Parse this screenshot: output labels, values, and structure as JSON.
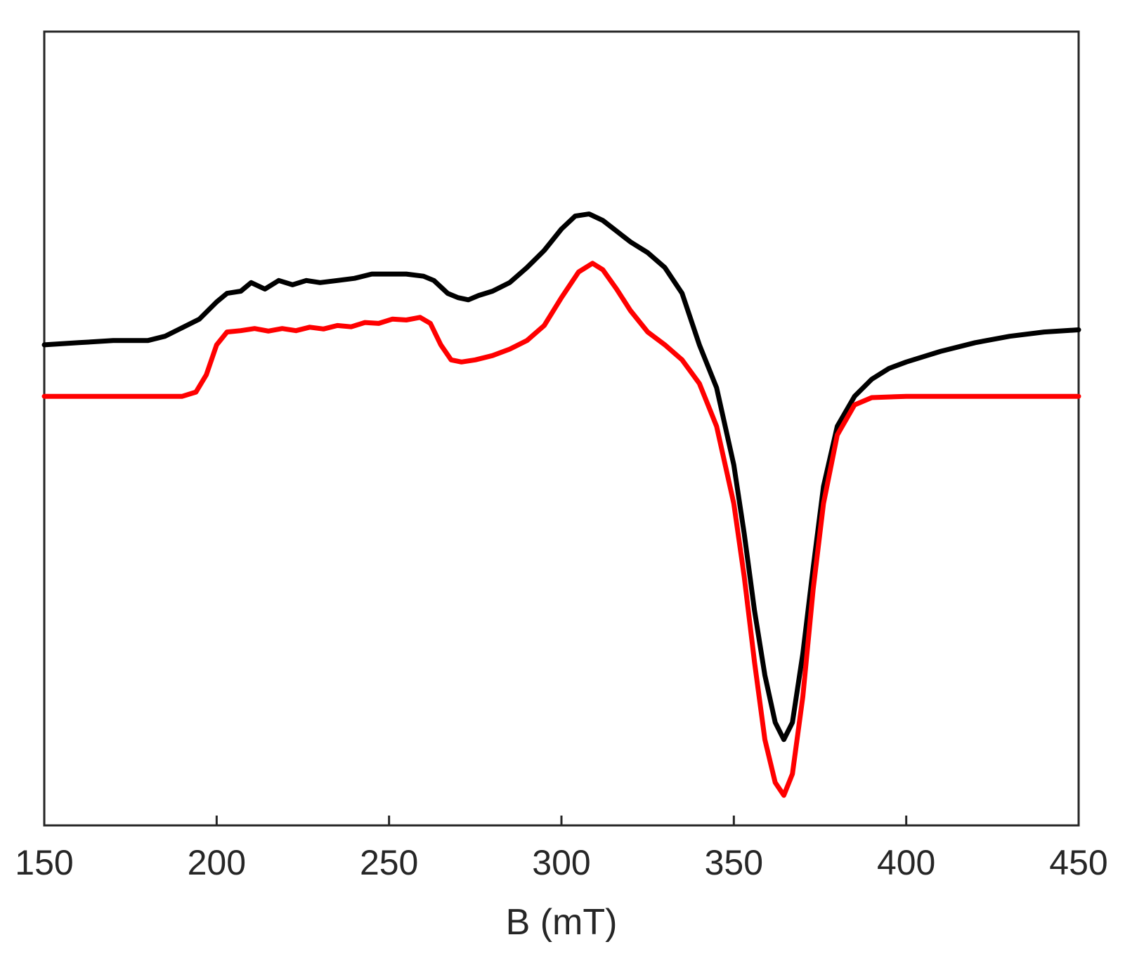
{
  "chart_data": {
    "type": "line",
    "title": "",
    "xlabel": "B (mT)",
    "ylabel": "",
    "xlim": [
      150,
      450
    ],
    "ylim": [
      -1.0,
      0.85
    ],
    "xticks": [
      "150",
      "200",
      "250",
      "300",
      "350",
      "400",
      "450"
    ],
    "grid": false,
    "legend": "none",
    "series": [
      {
        "color": "#000000",
        "points": [
          [
            150,
            0.12
          ],
          [
            160,
            0.125
          ],
          [
            170,
            0.13
          ],
          [
            180,
            0.13
          ],
          [
            185,
            0.14
          ],
          [
            190,
            0.16
          ],
          [
            195,
            0.18
          ],
          [
            200,
            0.22
          ],
          [
            203,
            0.24
          ],
          [
            207,
            0.245
          ],
          [
            210,
            0.265
          ],
          [
            214,
            0.25
          ],
          [
            218,
            0.27
          ],
          [
            222,
            0.26
          ],
          [
            226,
            0.27
          ],
          [
            230,
            0.265
          ],
          [
            235,
            0.27
          ],
          [
            240,
            0.275
          ],
          [
            245,
            0.285
          ],
          [
            250,
            0.285
          ],
          [
            255,
            0.285
          ],
          [
            260,
            0.28
          ],
          [
            263,
            0.27
          ],
          [
            267,
            0.24
          ],
          [
            270,
            0.23
          ],
          [
            273,
            0.225
          ],
          [
            276,
            0.235
          ],
          [
            280,
            0.245
          ],
          [
            285,
            0.265
          ],
          [
            290,
            0.3
          ],
          [
            295,
            0.34
          ],
          [
            300,
            0.39
          ],
          [
            304,
            0.42
          ],
          [
            308,
            0.425
          ],
          [
            312,
            0.41
          ],
          [
            316,
            0.385
          ],
          [
            320,
            0.36
          ],
          [
            325,
            0.335
          ],
          [
            330,
            0.3
          ],
          [
            335,
            0.24
          ],
          [
            340,
            0.12
          ],
          [
            345,
            0.02
          ],
          [
            350,
            -0.16
          ],
          [
            353,
            -0.32
          ],
          [
            356,
            -0.5
          ],
          [
            359,
            -0.65
          ],
          [
            362,
            -0.76
          ],
          [
            364.5,
            -0.8
          ],
          [
            367,
            -0.76
          ],
          [
            370,
            -0.6
          ],
          [
            373,
            -0.4
          ],
          [
            376,
            -0.21
          ],
          [
            380,
            -0.07
          ],
          [
            385,
            0.0
          ],
          [
            390,
            0.04
          ],
          [
            395,
            0.065
          ],
          [
            400,
            0.08
          ],
          [
            410,
            0.105
          ],
          [
            420,
            0.125
          ],
          [
            430,
            0.14
          ],
          [
            440,
            0.15
          ],
          [
            450,
            0.155
          ]
        ]
      },
      {
        "color": "#ff0000",
        "points": [
          [
            150,
            0.0
          ],
          [
            190,
            0.0
          ],
          [
            194,
            0.01
          ],
          [
            197,
            0.05
          ],
          [
            200,
            0.12
          ],
          [
            203,
            0.15
          ],
          [
            207,
            0.153
          ],
          [
            211,
            0.158
          ],
          [
            215,
            0.152
          ],
          [
            219,
            0.158
          ],
          [
            223,
            0.153
          ],
          [
            227,
            0.161
          ],
          [
            231,
            0.157
          ],
          [
            235,
            0.165
          ],
          [
            239,
            0.162
          ],
          [
            243,
            0.172
          ],
          [
            247,
            0.17
          ],
          [
            251,
            0.18
          ],
          [
            255,
            0.178
          ],
          [
            259,
            0.184
          ],
          [
            262,
            0.17
          ],
          [
            265,
            0.12
          ],
          [
            268,
            0.085
          ],
          [
            271,
            0.08
          ],
          [
            275,
            0.085
          ],
          [
            280,
            0.095
          ],
          [
            285,
            0.11
          ],
          [
            290,
            0.13
          ],
          [
            295,
            0.165
          ],
          [
            300,
            0.23
          ],
          [
            305,
            0.29
          ],
          [
            309,
            0.31
          ],
          [
            312,
            0.295
          ],
          [
            316,
            0.25
          ],
          [
            320,
            0.2
          ],
          [
            325,
            0.15
          ],
          [
            330,
            0.12
          ],
          [
            335,
            0.085
          ],
          [
            340,
            0.03
          ],
          [
            345,
            -0.07
          ],
          [
            350,
            -0.25
          ],
          [
            353,
            -0.42
          ],
          [
            356,
            -0.62
          ],
          [
            359,
            -0.8
          ],
          [
            362,
            -0.9
          ],
          [
            364.5,
            -0.93
          ],
          [
            367,
            -0.88
          ],
          [
            370,
            -0.7
          ],
          [
            373,
            -0.45
          ],
          [
            376,
            -0.25
          ],
          [
            380,
            -0.09
          ],
          [
            385,
            -0.02
          ],
          [
            390,
            -0.003
          ],
          [
            400,
            0.0
          ],
          [
            450,
            0.0
          ]
        ]
      }
    ]
  }
}
